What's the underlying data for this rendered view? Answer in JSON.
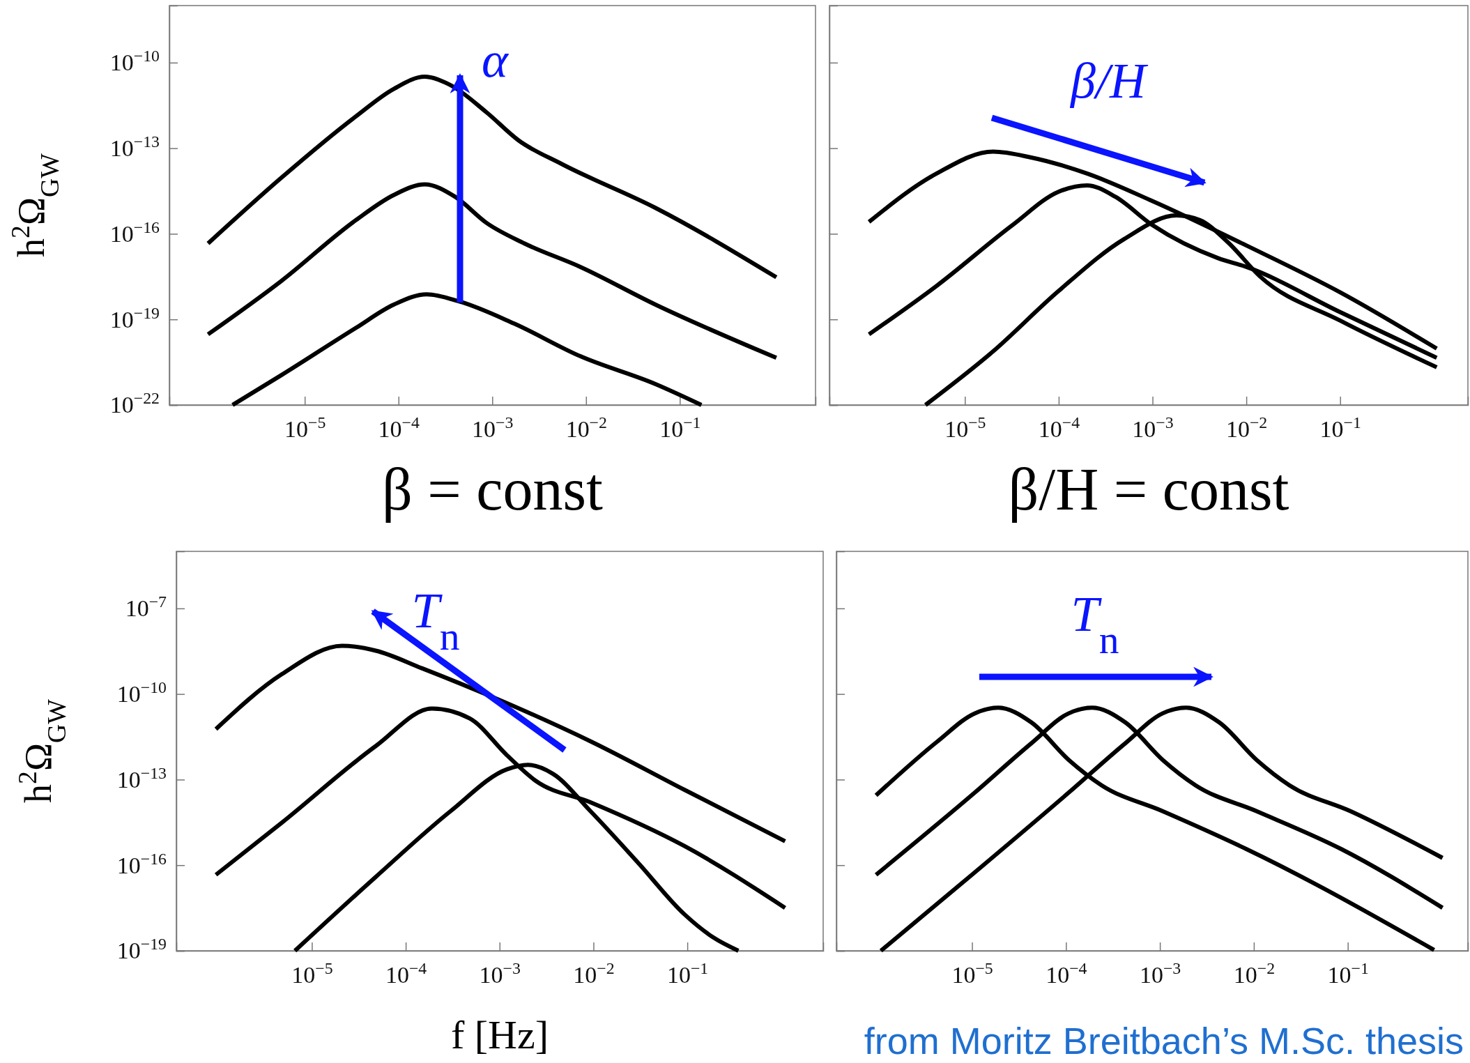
{
  "chart_data": [
    {
      "type": "line",
      "title": "β = const",
      "ylabel": "h$^{2}$Ω$_{GW}$",
      "annotations": [
        "α"
      ],
      "log": "xy",
      "xlim": [
        3.6e-07,
        2.8
      ],
      "ylim": [
        1e-22,
        1e-08
      ],
      "xticks": [
        {
          "value": 1e-05,
          "label": "10$^{−5}$"
        },
        {
          "value": 0.0001,
          "label": "10$^{−4}$"
        },
        {
          "value": 0.001,
          "label": "10$^{−3}$"
        },
        {
          "value": 0.01,
          "label": "10$^{−2}$"
        },
        {
          "value": 0.1,
          "label": "10$^{−1}$"
        }
      ],
      "yticks": [
        {
          "value": 1e-22,
          "label": "10$^{−22}$"
        },
        {
          "value": 1e-19,
          "label": "10$^{−19}$"
        },
        {
          "value": 1e-16,
          "label": "10$^{−16}$"
        },
        {
          "value": 1e-13,
          "label": "10$^{−13}$"
        },
        {
          "value": 1e-10,
          "label": "10$^{−10}$"
        }
      ],
      "series": [
        {
          "color": "#000000",
          "x": [
            9.3e-07,
            5.6e-06,
            3.5e-05,
            8.9e-05,
            0.00019,
            0.00035,
            0.00087,
            0.0019,
            0.0055,
            0.055,
            1.07
          ],
          "values": [
            4.6e-17,
            9.1e-15,
            1.3e-12,
            1.2e-11,
            3.2e-11,
            1.7e-11,
            1.8e-12,
            1.9e-13,
            2.8e-14,
            8.1e-16,
            3e-18
          ]
        },
        {
          "color": "#000000",
          "x": [
            9.3e-07,
            5.6e-06,
            3.5e-05,
            8.9e-05,
            0.00019,
            0.0004,
            0.00087,
            0.0022,
            0.0087,
            0.055,
            1.07
          ],
          "values": [
            3e-20,
            2.2e-18,
            3e-16,
            2.3e-15,
            5.4e-15,
            2e-15,
            2.4e-16,
            4.6e-17,
            6.9e-18,
            3.3e-19,
            4.5e-21
          ]
        },
        {
          "color": "#000000",
          "x": [
            1.7e-06,
            5.6e-06,
            3.5e-05,
            8.9e-05,
            0.0002,
            0.00045,
            0.0017,
            0.0087,
            0.055,
            0.17
          ],
          "values": [
            1e-22,
            1.1e-21,
            5e-20,
            3.3e-19,
            7.6e-19,
            4.2e-19,
            7.2e-20,
            5.1e-21,
            5.4e-22,
            1e-22
          ]
        }
      ]
    },
    {
      "type": "line",
      "title": "β/H = const",
      "annotations": [
        "β/H"
      ],
      "log": "xy",
      "tick_labels": "x",
      "xlim": [
        3.6e-07,
        2.3
      ],
      "ylim": [
        1e-22,
        1e-08
      ],
      "xticks": [
        {
          "value": 1e-05,
          "label": "10$^{−5}$"
        },
        {
          "value": 0.0001,
          "label": "10$^{−4}$"
        },
        {
          "value": 0.001,
          "label": "10$^{−3}$"
        },
        {
          "value": 0.01,
          "label": "10$^{−2}$"
        },
        {
          "value": 0.1,
          "label": "10$^{−1}$"
        }
      ],
      "yticks": [
        {
          "value": 1e-22,
          "label": null
        },
        {
          "value": 1e-19,
          "label": null
        },
        {
          "value": 1e-16,
          "label": null
        },
        {
          "value": 1e-13,
          "label": null
        },
        {
          "value": 1e-10,
          "label": null
        }
      ],
      "series": [
        {
          "color": "#000000",
          "x": [
            9.5e-07,
            5e-06,
            2e-05,
            5e-05,
            0.0002,
            0.001,
            0.01,
            0.1,
            1.07
          ],
          "values": [
            2.6e-16,
            1.3e-14,
            7.6e-14,
            4.8e-14,
            1.3e-14,
            1.4e-15,
            3.9e-17,
            8.9e-19,
            9.5e-21
          ]
        },
        {
          "color": "#000000",
          "x": [
            9.5e-07,
            5e-06,
            3.2e-05,
            0.0001,
            0.0002,
            0.0004,
            0.001,
            0.005,
            0.01,
            0.1,
            1.07
          ],
          "values": [
            3e-20,
            1.5e-18,
            2e-16,
            3e-15,
            5e-15,
            2e-15,
            2e-16,
            1.4e-17,
            6.9e-18,
            1.8e-19,
            4.5e-21
          ]
        },
        {
          "color": "#000000",
          "x": [
            3.8e-06,
            2e-05,
            0.0001,
            0.0005,
            0.0018,
            0.0032,
            0.0063,
            0.014,
            0.1,
            1.07
          ],
          "values": [
            1e-22,
            7.6e-21,
            1e-18,
            6.6e-17,
            4.4e-16,
            3e-16,
            5.2e-17,
            3.2e-18,
            9.1e-20,
            2.1e-21
          ]
        }
      ]
    },
    {
      "type": "line",
      "xlabel": "f [Hz]",
      "ylabel": "h$^{2}$Ω$_{GW}$",
      "annotations": [
        "T$_{n}$"
      ],
      "log": "xy",
      "xlim": [
        3.6e-07,
        2.8
      ],
      "ylim": [
        1e-19,
        1e-05
      ],
      "xticks": [
        {
          "value": 1e-05,
          "label": "10$^{−5}$"
        },
        {
          "value": 0.0001,
          "label": "10$^{−4}$"
        },
        {
          "value": 0.001,
          "label": "10$^{−3}$"
        },
        {
          "value": 0.01,
          "label": "10$^{−2}$"
        },
        {
          "value": 0.1,
          "label": "10$^{−1}$"
        }
      ],
      "yticks": [
        {
          "value": 1e-19,
          "label": "10$^{−19}$"
        },
        {
          "value": 1e-16,
          "label": "10$^{−16}$"
        },
        {
          "value": 1e-13,
          "label": "10$^{−13}$"
        },
        {
          "value": 1e-10,
          "label": "10$^{−10}$"
        },
        {
          "value": 1e-07,
          "label": "10$^{−7}$"
        }
      ],
      "series": [
        {
          "color": "#000000",
          "x": [
            9.5e-07,
            4.8e-06,
            2.1e-05,
            4.8e-05,
            0.00015,
            0.00095,
            0.0093,
            0.093,
            1.1
          ],
          "values": [
            5.9e-12,
            5e-10,
            4.9e-09,
            3.3e-09,
            7.9e-10,
            6.6e-11,
            2.2e-12,
            4.4e-14,
            6.9e-16
          ]
        },
        {
          "color": "#000000",
          "x": [
            9.5e-07,
            4.8e-06,
            4.8e-05,
            0.00019,
            0.00048,
            0.0012,
            0.0024,
            0.0093,
            0.093,
            1.1
          ],
          "values": [
            4.6e-17,
            3.1e-15,
            1.5e-12,
            3.1e-11,
            1.4e-11,
            7.1e-13,
            9.3e-14,
            1.6e-14,
            4.7e-16,
            3.2e-18
          ]
        },
        {
          "color": "#000000",
          "x": [
            6.6e-06,
            4.8e-05,
            0.0003,
            0.0012,
            0.002,
            0.0037,
            0.0093,
            0.03,
            0.093,
            0.19,
            0.35
          ],
          "values": [
            1e-19,
            3.9e-17,
            7.8e-15,
            2.3e-13,
            3.3e-13,
            1.6e-13,
            7.8e-15,
            1.2e-16,
            1.9e-18,
            2.9e-19,
            1e-19
          ]
        }
      ]
    },
    {
      "type": "line",
      "annotations": [
        "T$_{n}$",
        "from Moritz Breitbach’s M.Sc. thesis"
      ],
      "log": "xy",
      "tick_labels": "x",
      "xlim": [
        3.6e-07,
        1.9
      ],
      "ylim": [
        1e-19,
        1e-05
      ],
      "xticks": [
        {
          "value": 1e-05,
          "label": "10$^{−5}$"
        },
        {
          "value": 0.0001,
          "label": "10$^{−4}$"
        },
        {
          "value": 0.001,
          "label": "10$^{−3}$"
        },
        {
          "value": 0.01,
          "label": "10$^{−2}$"
        },
        {
          "value": 0.1,
          "label": "10$^{−1}$"
        }
      ],
      "yticks": [
        {
          "value": 1e-19,
          "label": null
        },
        {
          "value": 1e-16,
          "label": null
        },
        {
          "value": 1e-13,
          "label": null
        },
        {
          "value": 1e-10,
          "label": null
        },
        {
          "value": 1e-07,
          "label": null
        }
      ],
      "series": [
        {
          "color": "#000000",
          "x": [
            9.5e-07,
            4.3e-06,
            1.07e-05,
            1.9e-05,
            4.3e-05,
            0.000107,
            0.00024,
            0.00107,
            0.0083,
            0.83
          ],
          "values": [
            2.8e-14,
            2.2e-12,
            2.1e-11,
            3.3e-11,
            1e-11,
            4.9e-13,
            6.3e-14,
            7.8e-15,
            3.7e-16,
            1.07e-19
          ]
        },
        {
          "color": "#000000",
          "x": [
            9.5e-07,
            1.07e-05,
            4.3e-05,
            0.000107,
            0.00019,
            0.00043,
            0.00107,
            0.0024,
            0.0107,
            0.085,
            1.02
          ],
          "values": [
            4.6e-17,
            3.5e-14,
            1.9e-12,
            2.1e-11,
            3.3e-11,
            1e-11,
            4.9e-13,
            6.3e-14,
            7.8e-15,
            3.7e-16,
            3.2e-18
          ]
        },
        {
          "color": "#000000",
          "x": [
            1.07e-06,
            1.07e-05,
            0.000107,
            0.00043,
            0.00107,
            0.0019,
            0.0043,
            0.0107,
            0.024,
            0.107,
            1.02
          ],
          "values": [
            1e-19,
            5.6e-17,
            3.5e-14,
            1.9e-12,
            2.1e-11,
            3.3e-11,
            1e-11,
            4.9e-13,
            6.3e-14,
            7.8e-15,
            1.8e-16
          ]
        }
      ]
    }
  ]
}
